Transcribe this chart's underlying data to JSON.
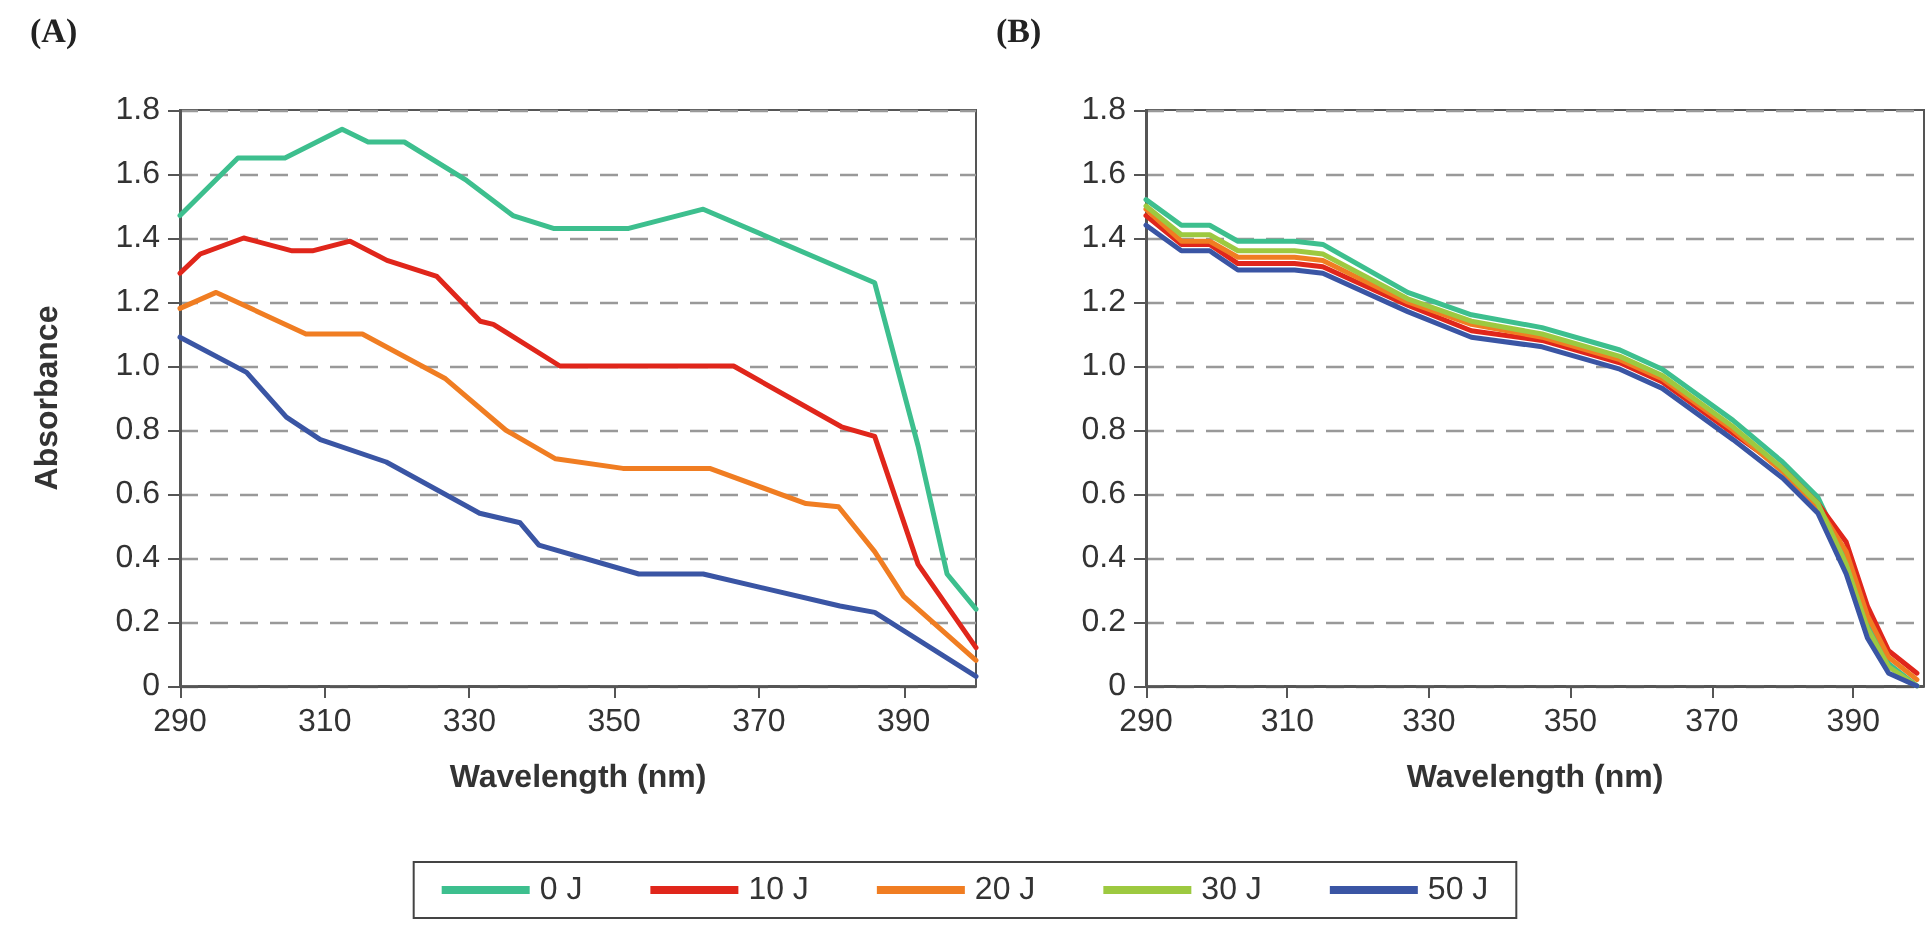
{
  "chart_data": [
    {
      "type": "line",
      "title": "(A)",
      "xlabel": "Wavelength (nm)",
      "ylabel": "Absorbance",
      "xlim": [
        290,
        400
      ],
      "xticks": [
        290,
        310,
        330,
        350,
        370,
        390
      ],
      "ylim": [
        0,
        1.8
      ],
      "yticks": [
        0,
        0.2,
        0.4,
        0.6,
        0.8,
        {
          "value": 1,
          "label": "1.0"
        },
        1.2,
        1.4,
        1.6,
        1.8
      ],
      "grid": "y",
      "legend": "bottom",
      "line_style": "solid",
      "marker": "none",
      "series": [
        {
          "name": "0 J",
          "color": "#3dbf8e",
          "x": [
            290,
            298,
            302,
            304.5,
            312.4,
            316,
            321,
            329.6,
            336,
            341.6,
            352,
            362.3,
            386,
            392,
            396,
            400
          ],
          "values": [
            1.47,
            1.65,
            1.65,
            1.65,
            1.74,
            1.7,
            1.7,
            1.58,
            1.47,
            1.43,
            1.43,
            1.49,
            1.26,
            0.75,
            0.35,
            0.24
          ]
        },
        {
          "name": "10 J",
          "color": "#e0261b",
          "x": [
            290,
            292.8,
            298.8,
            305.5,
            308.3,
            313.5,
            318.6,
            325.5,
            331.5,
            333.3,
            342.5,
            366.5,
            381.4,
            386,
            392,
            400
          ],
          "values": [
            1.29,
            1.35,
            1.4,
            1.36,
            1.36,
            1.39,
            1.33,
            1.28,
            1.14,
            1.13,
            1.0,
            1.0,
            0.81,
            0.78,
            0.38,
            0.12
          ]
        },
        {
          "name": "20 J",
          "color": "#f07d22",
          "x": [
            290,
            295,
            307.4,
            315.2,
            326.7,
            335,
            341.9,
            351.2,
            363.2,
            376.5,
            381,
            386,
            390,
            400
          ],
          "values": [
            1.18,
            1.23,
            1.1,
            1.1,
            0.96,
            0.8,
            0.71,
            0.68,
            0.68,
            0.57,
            0.56,
            0.42,
            0.28,
            0.08
          ]
        },
        {
          "name": "50 J",
          "color": "#3a55a4",
          "x": [
            290,
            299.2,
            304.7,
            309.4,
            318.5,
            331.4,
            337,
            339.6,
            353.4,
            362.3,
            381.2,
            386,
            400
          ],
          "values": [
            1.09,
            0.98,
            0.84,
            0.77,
            0.7,
            0.54,
            0.51,
            0.44,
            0.35,
            0.35,
            0.25,
            0.23,
            0.03
          ]
        }
      ]
    },
    {
      "type": "line",
      "title": "(B)",
      "xlabel": "Wavelength (nm)",
      "xlim": [
        290,
        400
      ],
      "xticks": [
        290,
        310,
        330,
        350,
        370,
        390
      ],
      "ylim": [
        0,
        1.8
      ],
      "yticks": [
        0,
        0.2,
        0.4,
        0.6,
        0.8,
        {
          "value": 1,
          "label": "1.0"
        },
        1.2,
        1.4,
        1.6,
        1.8
      ],
      "grid": "y",
      "legend": "bottom",
      "line_style": "solid",
      "marker": "none",
      "x": [
        290,
        295,
        299,
        303,
        311,
        315,
        327,
        336,
        346,
        357,
        363,
        373,
        380,
        385,
        389,
        392,
        395,
        399
      ],
      "series": [
        {
          "name": "0 J",
          "color": "#3dbf8e",
          "values": [
            1.52,
            1.44,
            1.44,
            1.39,
            1.39,
            1.38,
            1.23,
            1.16,
            1.12,
            1.05,
            0.99,
            0.83,
            0.7,
            0.59,
            0.4,
            0.2,
            0.07,
            0
          ]
        },
        {
          "name": "10 J",
          "color": "#e0261b",
          "values": [
            1.47,
            1.38,
            1.38,
            1.32,
            1.32,
            1.31,
            1.19,
            1.11,
            1.08,
            1.01,
            0.95,
            0.79,
            0.68,
            0.57,
            0.45,
            0.25,
            0.11,
            0.04
          ]
        },
        {
          "name": "20 J",
          "color": "#f07d22",
          "values": [
            1.49,
            1.39,
            1.39,
            1.34,
            1.34,
            1.33,
            1.2,
            1.13,
            1.09,
            1.02,
            0.96,
            0.8,
            0.67,
            0.56,
            0.42,
            0.22,
            0.09,
            0.02
          ]
        },
        {
          "name": "30 J",
          "color": "#9dc940",
          "values": [
            1.5,
            1.41,
            1.41,
            1.36,
            1.36,
            1.35,
            1.21,
            1.14,
            1.1,
            1.03,
            0.97,
            0.81,
            0.68,
            0.57,
            0.38,
            0.18,
            0.06,
            0
          ]
        },
        {
          "name": "50 J",
          "color": "#3a55a4",
          "values": [
            1.44,
            1.36,
            1.36,
            1.3,
            1.3,
            1.29,
            1.17,
            1.09,
            1.06,
            0.99,
            0.93,
            0.77,
            0.65,
            0.54,
            0.35,
            0.15,
            0.04,
            0
          ]
        }
      ]
    }
  ]
}
